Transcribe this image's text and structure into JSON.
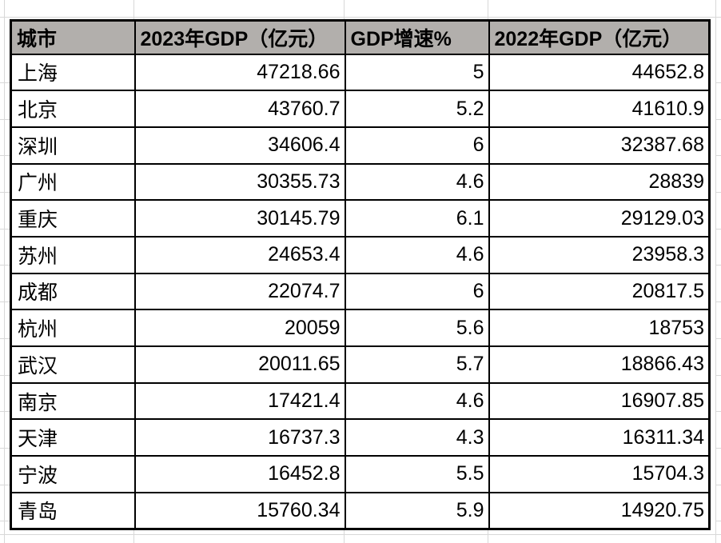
{
  "app": {
    "kind": "spreadsheet-table-view"
  },
  "colors": {
    "header_bg": "#b2afac",
    "cell_bg": "#ffffff",
    "border": "#000000",
    "gridline": "#d8d8d8",
    "text": "#000000"
  },
  "table": {
    "headers": [
      "城市",
      "2023年GDP（亿元）",
      "GDP增速%",
      "2022年GDP（亿元）"
    ],
    "rows": [
      {
        "city": "上海",
        "gdp_2023": "47218.66",
        "growth": "5",
        "gdp_2022": "44652.8"
      },
      {
        "city": "北京",
        "gdp_2023": "43760.7",
        "growth": "5.2",
        "gdp_2022": "41610.9"
      },
      {
        "city": "深圳",
        "gdp_2023": "34606.4",
        "growth": "6",
        "gdp_2022": "32387.68"
      },
      {
        "city": "广州",
        "gdp_2023": "30355.73",
        "growth": "4.6",
        "gdp_2022": "28839"
      },
      {
        "city": "重庆",
        "gdp_2023": "30145.79",
        "growth": "6.1",
        "gdp_2022": "29129.03"
      },
      {
        "city": "苏州",
        "gdp_2023": "24653.4",
        "growth": "4.6",
        "gdp_2022": "23958.3"
      },
      {
        "city": "成都",
        "gdp_2023": "22074.7",
        "growth": "6",
        "gdp_2022": "20817.5"
      },
      {
        "city": "杭州",
        "gdp_2023": "20059",
        "growth": "5.6",
        "gdp_2022": "18753"
      },
      {
        "city": "武汉",
        "gdp_2023": "20011.65",
        "growth": "5.7",
        "gdp_2022": "18866.43"
      },
      {
        "city": "南京",
        "gdp_2023": "17421.4",
        "growth": "4.6",
        "gdp_2022": "16907.85"
      },
      {
        "city": "天津",
        "gdp_2023": "16737.3",
        "growth": "4.3",
        "gdp_2022": "16311.34"
      },
      {
        "city": "宁波",
        "gdp_2023": "16452.8",
        "growth": "5.5",
        "gdp_2022": "15704.3"
      },
      {
        "city": "青岛",
        "gdp_2023": "15760.34",
        "growth": "5.9",
        "gdp_2022": "14920.75"
      }
    ]
  },
  "chart_data": {
    "type": "table",
    "columns": [
      "城市",
      "2023年GDP（亿元）",
      "GDP增速%",
      "2022年GDP（亿元）"
    ],
    "rows": [
      [
        "上海",
        47218.66,
        5,
        44652.8
      ],
      [
        "北京",
        43760.7,
        5.2,
        41610.9
      ],
      [
        "深圳",
        34606.4,
        6,
        32387.68
      ],
      [
        "广州",
        30355.73,
        4.6,
        28839
      ],
      [
        "重庆",
        30145.79,
        6.1,
        29129.03
      ],
      [
        "苏州",
        24653.4,
        4.6,
        23958.3
      ],
      [
        "成都",
        22074.7,
        6,
        20817.5
      ],
      [
        "杭州",
        20059,
        5.6,
        18753
      ],
      [
        "武汉",
        20011.65,
        5.7,
        18866.43
      ],
      [
        "南京",
        17421.4,
        4.6,
        16907.85
      ],
      [
        "天津",
        16737.3,
        4.3,
        16311.34
      ],
      [
        "宁波",
        16452.8,
        5.5,
        15704.3
      ],
      [
        "青岛",
        15760.34,
        5.9,
        14920.75
      ]
    ]
  }
}
